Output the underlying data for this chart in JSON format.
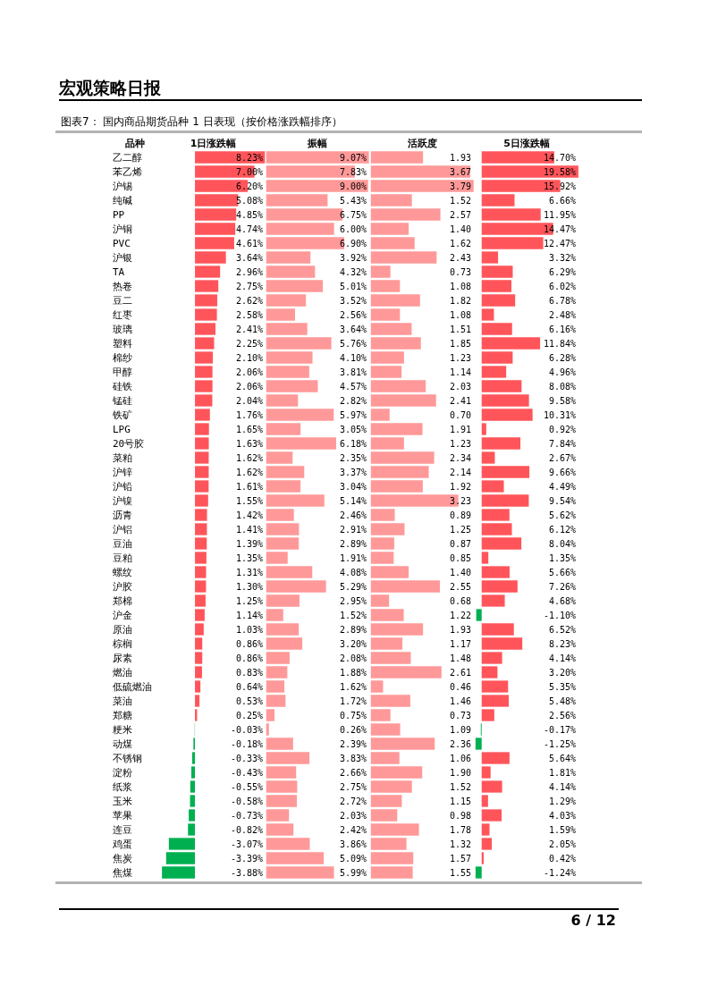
{
  "chart_data": [
    {
      "type": "bar",
      "orientation": "horizontal",
      "title": "1日涨跌幅",
      "ylabel": "品种",
      "tick_labels": "y",
      "annotations": [
        "宏观策略日报",
        "图表7： 国内商品期货品种 1 日表现（按价格涨跌幅排序）",
        "6 / 12"
      ],
      "categories": [
        "乙二醇",
        "苯乙烯",
        "沪锡",
        "纯碱",
        "PP",
        "沪铜",
        "PVC",
        "沪银",
        "TA",
        "热卷",
        "豆二",
        "红枣",
        "玻璃",
        "塑料",
        "棉纱",
        "甲醇",
        "硅铁",
        "锰硅",
        "铁矿",
        "LPG",
        "20号胶",
        "菜粕",
        "沪锌",
        "沪铅",
        "沪镍",
        "沥青",
        "沪铝",
        "豆油",
        "豆粕",
        "螺纹",
        "沪胶",
        "郑棉",
        "沪金",
        "原油",
        "棕榈",
        "尿素",
        "燃油",
        "低硫燃油",
        "菜油",
        "郑糖",
        "粳米",
        "动煤",
        "不锈钢",
        "淀粉",
        "纸浆",
        "玉米",
        "苹果",
        "连豆",
        "鸡蛋",
        "焦炭",
        "焦煤"
      ],
      "values": [
        8.23,
        7.0,
        6.2,
        5.08,
        4.85,
        4.74,
        4.61,
        3.64,
        2.96,
        2.75,
        2.62,
        2.58,
        2.41,
        2.25,
        2.1,
        2.06,
        2.06,
        2.04,
        1.76,
        1.65,
        1.63,
        1.62,
        1.62,
        1.61,
        1.55,
        1.42,
        1.41,
        1.39,
        1.35,
        1.31,
        1.3,
        1.25,
        1.14,
        1.03,
        0.86,
        0.86,
        0.83,
        0.64,
        0.53,
        0.25,
        -0.03,
        -0.18,
        -0.33,
        -0.43,
        -0.55,
        -0.58,
        -0.73,
        -0.82,
        -3.07,
        -3.39,
        -3.88
      ],
      "value_labels": [
        "8.23%",
        "7.00%",
        "6.20%",
        "5.08%",
        "4.85%",
        "4.74%",
        "4.61%",
        "3.64%",
        "2.96%",
        "2.75%",
        "2.62%",
        "2.58%",
        "2.41%",
        "2.25%",
        "2.10%",
        "2.06%",
        "2.06%",
        "2.04%",
        "1.76%",
        "1.65%",
        "1.63%",
        "1.62%",
        "1.62%",
        "1.61%",
        "1.55%",
        "1.42%",
        "1.41%",
        "1.39%",
        "1.35%",
        "1.31%",
        "1.30%",
        "1.25%",
        "1.14%",
        "1.03%",
        "0.86%",
        "0.86%",
        "0.83%",
        "0.64%",
        "0.53%",
        "0.25%",
        "-0.03%",
        "-0.18%",
        "-0.33%",
        "-0.43%",
        "-0.55%",
        "-0.58%",
        "-0.73%",
        "-0.82%",
        "-3.07%",
        "-3.39%",
        "-3.88%"
      ],
      "colors": [
        "#ff555a",
        "#ff555a",
        "#ff555a",
        "#ff555a",
        "#ff555a",
        "#ff555a",
        "#ff555a",
        "#ff555a",
        "#ff555a",
        "#ff555a",
        "#ff555a",
        "#ff555a",
        "#ff555a",
        "#ff555a",
        "#ff555a",
        "#ff555a",
        "#ff555a",
        "#ff555a",
        "#ff555a",
        "#ff555a",
        "#ff555a",
        "#ff555a",
        "#ff555a",
        "#ff555a",
        "#ff555a",
        "#ff555a",
        "#ff555a",
        "#ff555a",
        "#ff555a",
        "#ff555a",
        "#ff555a",
        "#ff555a",
        "#ff555a",
        "#ff555a",
        "#ff555a",
        "#ff555a",
        "#ff555a",
        "#ff555a",
        "#ff555a",
        "#ff555a",
        "#00b050",
        "#00b050",
        "#00b050",
        "#00b050",
        "#00b050",
        "#00b050",
        "#00b050",
        "#00b050",
        "#00b050",
        "#00b050",
        "#00b050"
      ],
      "xlim": [
        -4,
        8.3
      ]
    },
    {
      "type": "bar",
      "orientation": "horizontal",
      "title": "振幅",
      "categories": [
        null,
        null,
        null,
        null,
        null,
        null,
        null,
        null,
        null,
        null,
        null,
        null,
        null,
        null,
        null,
        null,
        null,
        null,
        null,
        null,
        null,
        null,
        null,
        null,
        null,
        null,
        null,
        null,
        null,
        null,
        null,
        null,
        null,
        null,
        null,
        null,
        null,
        null,
        null,
        null,
        null,
        null,
        null,
        null,
        null,
        null,
        null,
        null,
        null,
        null,
        null
      ],
      "values": [
        9.07,
        7.83,
        9.0,
        5.43,
        6.75,
        6.0,
        6.9,
        3.92,
        4.32,
        5.01,
        3.52,
        2.56,
        3.64,
        5.76,
        4.1,
        3.81,
        4.57,
        2.82,
        5.97,
        3.05,
        6.18,
        2.35,
        3.37,
        3.04,
        5.14,
        2.46,
        2.91,
        2.89,
        1.91,
        4.08,
        5.29,
        2.95,
        1.52,
        2.89,
        3.2,
        2.08,
        1.88,
        1.62,
        1.72,
        0.75,
        0.26,
        2.39,
        3.83,
        2.66,
        2.75,
        2.72,
        2.03,
        2.42,
        3.86,
        5.09,
        5.99
      ],
      "value_labels": [
        "9.07%",
        "7.83%",
        "9.00%",
        "5.43%",
        "6.75%",
        "6.00%",
        "6.90%",
        "3.92%",
        "4.32%",
        "5.01%",
        "3.52%",
        "2.56%",
        "3.64%",
        "5.76%",
        "4.10%",
        "3.81%",
        "4.57%",
        "2.82%",
        "5.97%",
        "3.05%",
        "6.18%",
        "2.35%",
        "3.37%",
        "3.04%",
        "5.14%",
        "2.46%",
        "2.91%",
        "2.89%",
        "1.91%",
        "4.08%",
        "5.29%",
        "2.95%",
        "1.52%",
        "2.89%",
        "3.20%",
        "2.08%",
        "1.88%",
        "1.62%",
        "1.72%",
        "0.75%",
        "0.26%",
        "2.39%",
        "3.83%",
        "2.66%",
        "2.75%",
        "2.72%",
        "2.03%",
        "2.42%",
        "3.86%",
        "5.09%",
        "5.99%"
      ],
      "color": "#ff9999",
      "xlim": [
        0,
        9.1
      ]
    },
    {
      "type": "bar",
      "orientation": "horizontal",
      "title": "活跃度",
      "categories": [
        null,
        null,
        null,
        null,
        null,
        null,
        null,
        null,
        null,
        null,
        null,
        null,
        null,
        null,
        null,
        null,
        null,
        null,
        null,
        null,
        null,
        null,
        null,
        null,
        null,
        null,
        null,
        null,
        null,
        null,
        null,
        null,
        null,
        null,
        null,
        null,
        null,
        null,
        null,
        null,
        null,
        null,
        null,
        null,
        null,
        null,
        null,
        null,
        null,
        null,
        null
      ],
      "values": [
        1.93,
        3.67,
        3.79,
        1.52,
        2.57,
        1.4,
        1.62,
        2.43,
        0.73,
        1.08,
        1.82,
        1.08,
        1.51,
        1.85,
        1.23,
        1.14,
        2.03,
        2.41,
        0.7,
        1.91,
        1.23,
        2.34,
        2.14,
        1.92,
        3.23,
        0.89,
        1.25,
        0.87,
        0.85,
        1.4,
        2.55,
        0.68,
        1.22,
        1.93,
        1.17,
        1.48,
        2.61,
        0.46,
        1.46,
        0.73,
        1.09,
        2.36,
        1.06,
        1.9,
        1.52,
        1.15,
        0.98,
        1.78,
        1.32,
        1.57,
        1.55
      ],
      "value_labels": [
        "1.93",
        "3.67",
        "3.79",
        "1.52",
        "2.57",
        "1.40",
        "1.62",
        "2.43",
        "0.73",
        "1.08",
        "1.82",
        "1.08",
        "1.51",
        "1.85",
        "1.23",
        "1.14",
        "2.03",
        "2.41",
        "0.70",
        "1.91",
        "1.23",
        "2.34",
        "2.14",
        "1.92",
        "3.23",
        "0.89",
        "1.25",
        "0.87",
        "0.85",
        "1.40",
        "2.55",
        "0.68",
        "1.22",
        "1.93",
        "1.17",
        "1.48",
        "2.61",
        "0.46",
        "1.46",
        "0.73",
        "1.09",
        "2.36",
        "1.06",
        "1.90",
        "1.52",
        "1.15",
        "0.98",
        "1.78",
        "1.32",
        "1.57",
        "1.55"
      ],
      "color": "#ff9999",
      "xlim": [
        0,
        3.8
      ]
    },
    {
      "type": "bar",
      "orientation": "horizontal",
      "title": "5日涨跌幅",
      "categories": [
        null,
        null,
        null,
        null,
        null,
        null,
        null,
        null,
        null,
        null,
        null,
        null,
        null,
        null,
        null,
        null,
        null,
        null,
        null,
        null,
        null,
        null,
        null,
        null,
        null,
        null,
        null,
        null,
        null,
        null,
        null,
        null,
        null,
        null,
        null,
        null,
        null,
        null,
        null,
        null,
        null,
        null,
        null,
        null,
        null,
        null,
        null,
        null,
        null,
        null,
        null
      ],
      "values": [
        14.7,
        19.58,
        15.92,
        6.66,
        11.95,
        14.47,
        12.47,
        3.32,
        6.29,
        6.02,
        6.78,
        2.48,
        6.16,
        11.84,
        6.28,
        4.96,
        8.08,
        9.58,
        10.31,
        0.92,
        7.84,
        2.67,
        9.66,
        4.49,
        9.54,
        5.62,
        6.12,
        8.04,
        1.35,
        5.66,
        7.26,
        4.68,
        -1.1,
        6.52,
        8.23,
        4.14,
        3.2,
        5.35,
        5.48,
        2.56,
        -0.17,
        -1.25,
        5.64,
        1.81,
        4.14,
        1.29,
        4.03,
        1.59,
        2.05,
        0.42,
        -1.24
      ],
      "value_labels": [
        "14.70%",
        "19.58%",
        "15.92%",
        "6.66%",
        "11.95%",
        "14.47%",
        "12.47%",
        "3.32%",
        "6.29%",
        "6.02%",
        "6.78%",
        "2.48%",
        "6.16%",
        "11.84%",
        "6.28%",
        "4.96%",
        "8.08%",
        "9.58%",
        "10.31%",
        "0.92%",
        "7.84%",
        "2.67%",
        "9.66%",
        "4.49%",
        "9.54%",
        "5.62%",
        "6.12%",
        "8.04%",
        "1.35%",
        "5.66%",
        "7.26%",
        "4.68%",
        "-1.10%",
        "6.52%",
        "8.23%",
        "4.14%",
        "3.20%",
        "5.35%",
        "5.48%",
        "2.56%",
        "-0.17%",
        "-1.25%",
        "5.64%",
        "1.81%",
        "4.14%",
        "1.29%",
        "4.03%",
        "1.59%",
        "2.05%",
        "0.42%",
        "-1.24%"
      ],
      "colors": [
        "#ff555a",
        "#ff555a",
        "#ff555a",
        "#ff555a",
        "#ff555a",
        "#ff555a",
        "#ff555a",
        "#ff555a",
        "#ff555a",
        "#ff555a",
        "#ff555a",
        "#ff555a",
        "#ff555a",
        "#ff555a",
        "#ff555a",
        "#ff555a",
        "#ff555a",
        "#ff555a",
        "#ff555a",
        "#ff555a",
        "#ff555a",
        "#ff555a",
        "#ff555a",
        "#ff555a",
        "#ff555a",
        "#ff555a",
        "#ff555a",
        "#ff555a",
        "#ff555a",
        "#ff555a",
        "#ff555a",
        "#ff555a",
        "#00b050",
        "#ff555a",
        "#ff555a",
        "#ff555a",
        "#ff555a",
        "#ff555a",
        "#ff555a",
        "#ff555a",
        "#00b050",
        "#00b050",
        "#ff555a",
        "#ff555a",
        "#ff555a",
        "#ff555a",
        "#ff555a",
        "#ff555a",
        "#ff555a",
        "#ff555a",
        "#00b050"
      ],
      "xlim": [
        -1.4,
        19.6
      ]
    }
  ]
}
